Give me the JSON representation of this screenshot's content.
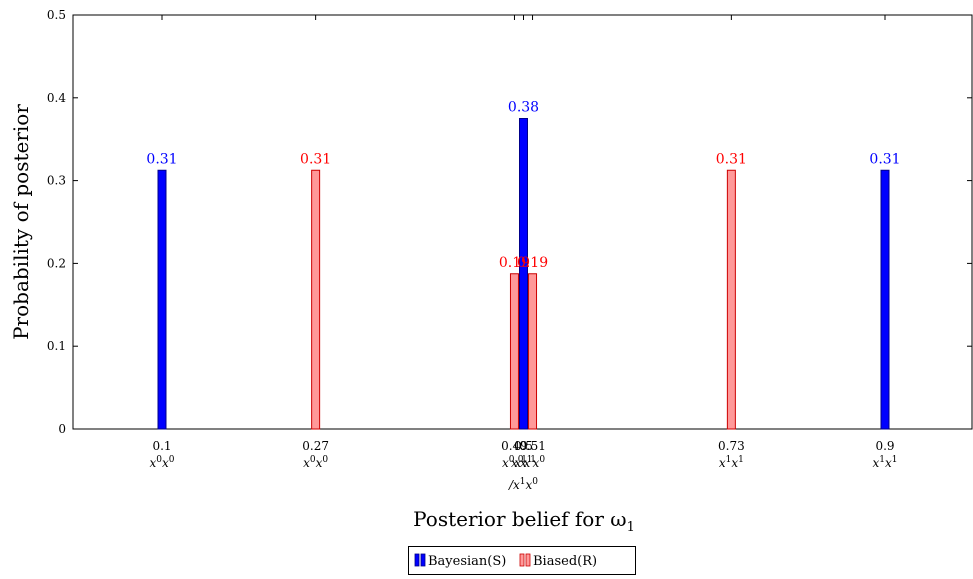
{
  "colors": {
    "bayesian_fill": "#0000ff",
    "bayesian_stroke": "#00008b",
    "biased_fill": "#ff9999",
    "biased_stroke": "#cc0000",
    "bayesian_label": "#0000ff",
    "biased_label": "#ff0000"
  },
  "chart_data": {
    "type": "bar",
    "title": "",
    "xlabel": "Posterior belief for ω",
    "xlabel_subscript": "1",
    "ylabel": "Probability of posterior",
    "ylim": [
      0,
      0.5
    ],
    "yticks": [
      0,
      0.1,
      0.2,
      0.3,
      0.4,
      0.5
    ],
    "ytick_labels": [
      "0",
      "0.1",
      "0.2",
      "0.3",
      "0.4",
      "0.5"
    ],
    "grid": false,
    "legend_position": "bottom-center",
    "xticks": [
      {
        "x": 0.1,
        "label": "0.1",
        "sub": [
          {
            "base": "x",
            "sup": "0"
          },
          {
            "base": "x",
            "sup": "0"
          }
        ],
        "sub2": null
      },
      {
        "x": 0.27,
        "label": "0.27",
        "sub": [
          {
            "base": "x",
            "sup": "0"
          },
          {
            "base": "x",
            "sup": "0"
          }
        ],
        "sub2": null
      },
      {
        "x": 0.49,
        "label": "0.49",
        "sub": [
          {
            "base": "x",
            "sup": "0"
          },
          {
            "base": "x",
            "sup": "1"
          }
        ],
        "sub2": null
      },
      {
        "x": 0.5,
        "label": "0.5",
        "sub": [
          {
            "base": "x",
            "sup": "0"
          },
          {
            "base": "x",
            "sup": "1"
          }
        ],
        "sub2": [
          {
            "base": "/x",
            "sup": "1"
          },
          {
            "base": "x",
            "sup": "0"
          }
        ]
      },
      {
        "x": 0.51,
        "label": "0.51",
        "sub": [
          {
            "base": "x",
            "sup": "1"
          },
          {
            "base": "x",
            "sup": "0"
          }
        ],
        "sub2": null
      },
      {
        "x": 0.73,
        "label": "0.73",
        "sub": [
          {
            "base": "x",
            "sup": "1"
          },
          {
            "base": "x",
            "sup": "1"
          }
        ],
        "sub2": null
      },
      {
        "x": 0.9,
        "label": "0.9",
        "sub": [
          {
            "base": "x",
            "sup": "1"
          },
          {
            "base": "x",
            "sup": "1"
          }
        ],
        "sub2": null
      }
    ],
    "series": [
      {
        "name": "Bayesian(S)",
        "points": [
          {
            "x": 0.1,
            "y": 0.3125,
            "label": "0.31"
          },
          {
            "x": 0.5,
            "y": 0.375,
            "label": "0.38"
          },
          {
            "x": 0.9,
            "y": 0.3125,
            "label": "0.31"
          }
        ]
      },
      {
        "name": "Biased(R)",
        "points": [
          {
            "x": 0.27,
            "y": 0.3125,
            "label": "0.31"
          },
          {
            "x": 0.49,
            "y": 0.1875,
            "label": "0.19"
          },
          {
            "x": 0.51,
            "y": 0.1875,
            "label": "0.19"
          },
          {
            "x": 0.73,
            "y": 0.3125,
            "label": "0.31"
          }
        ]
      }
    ]
  }
}
